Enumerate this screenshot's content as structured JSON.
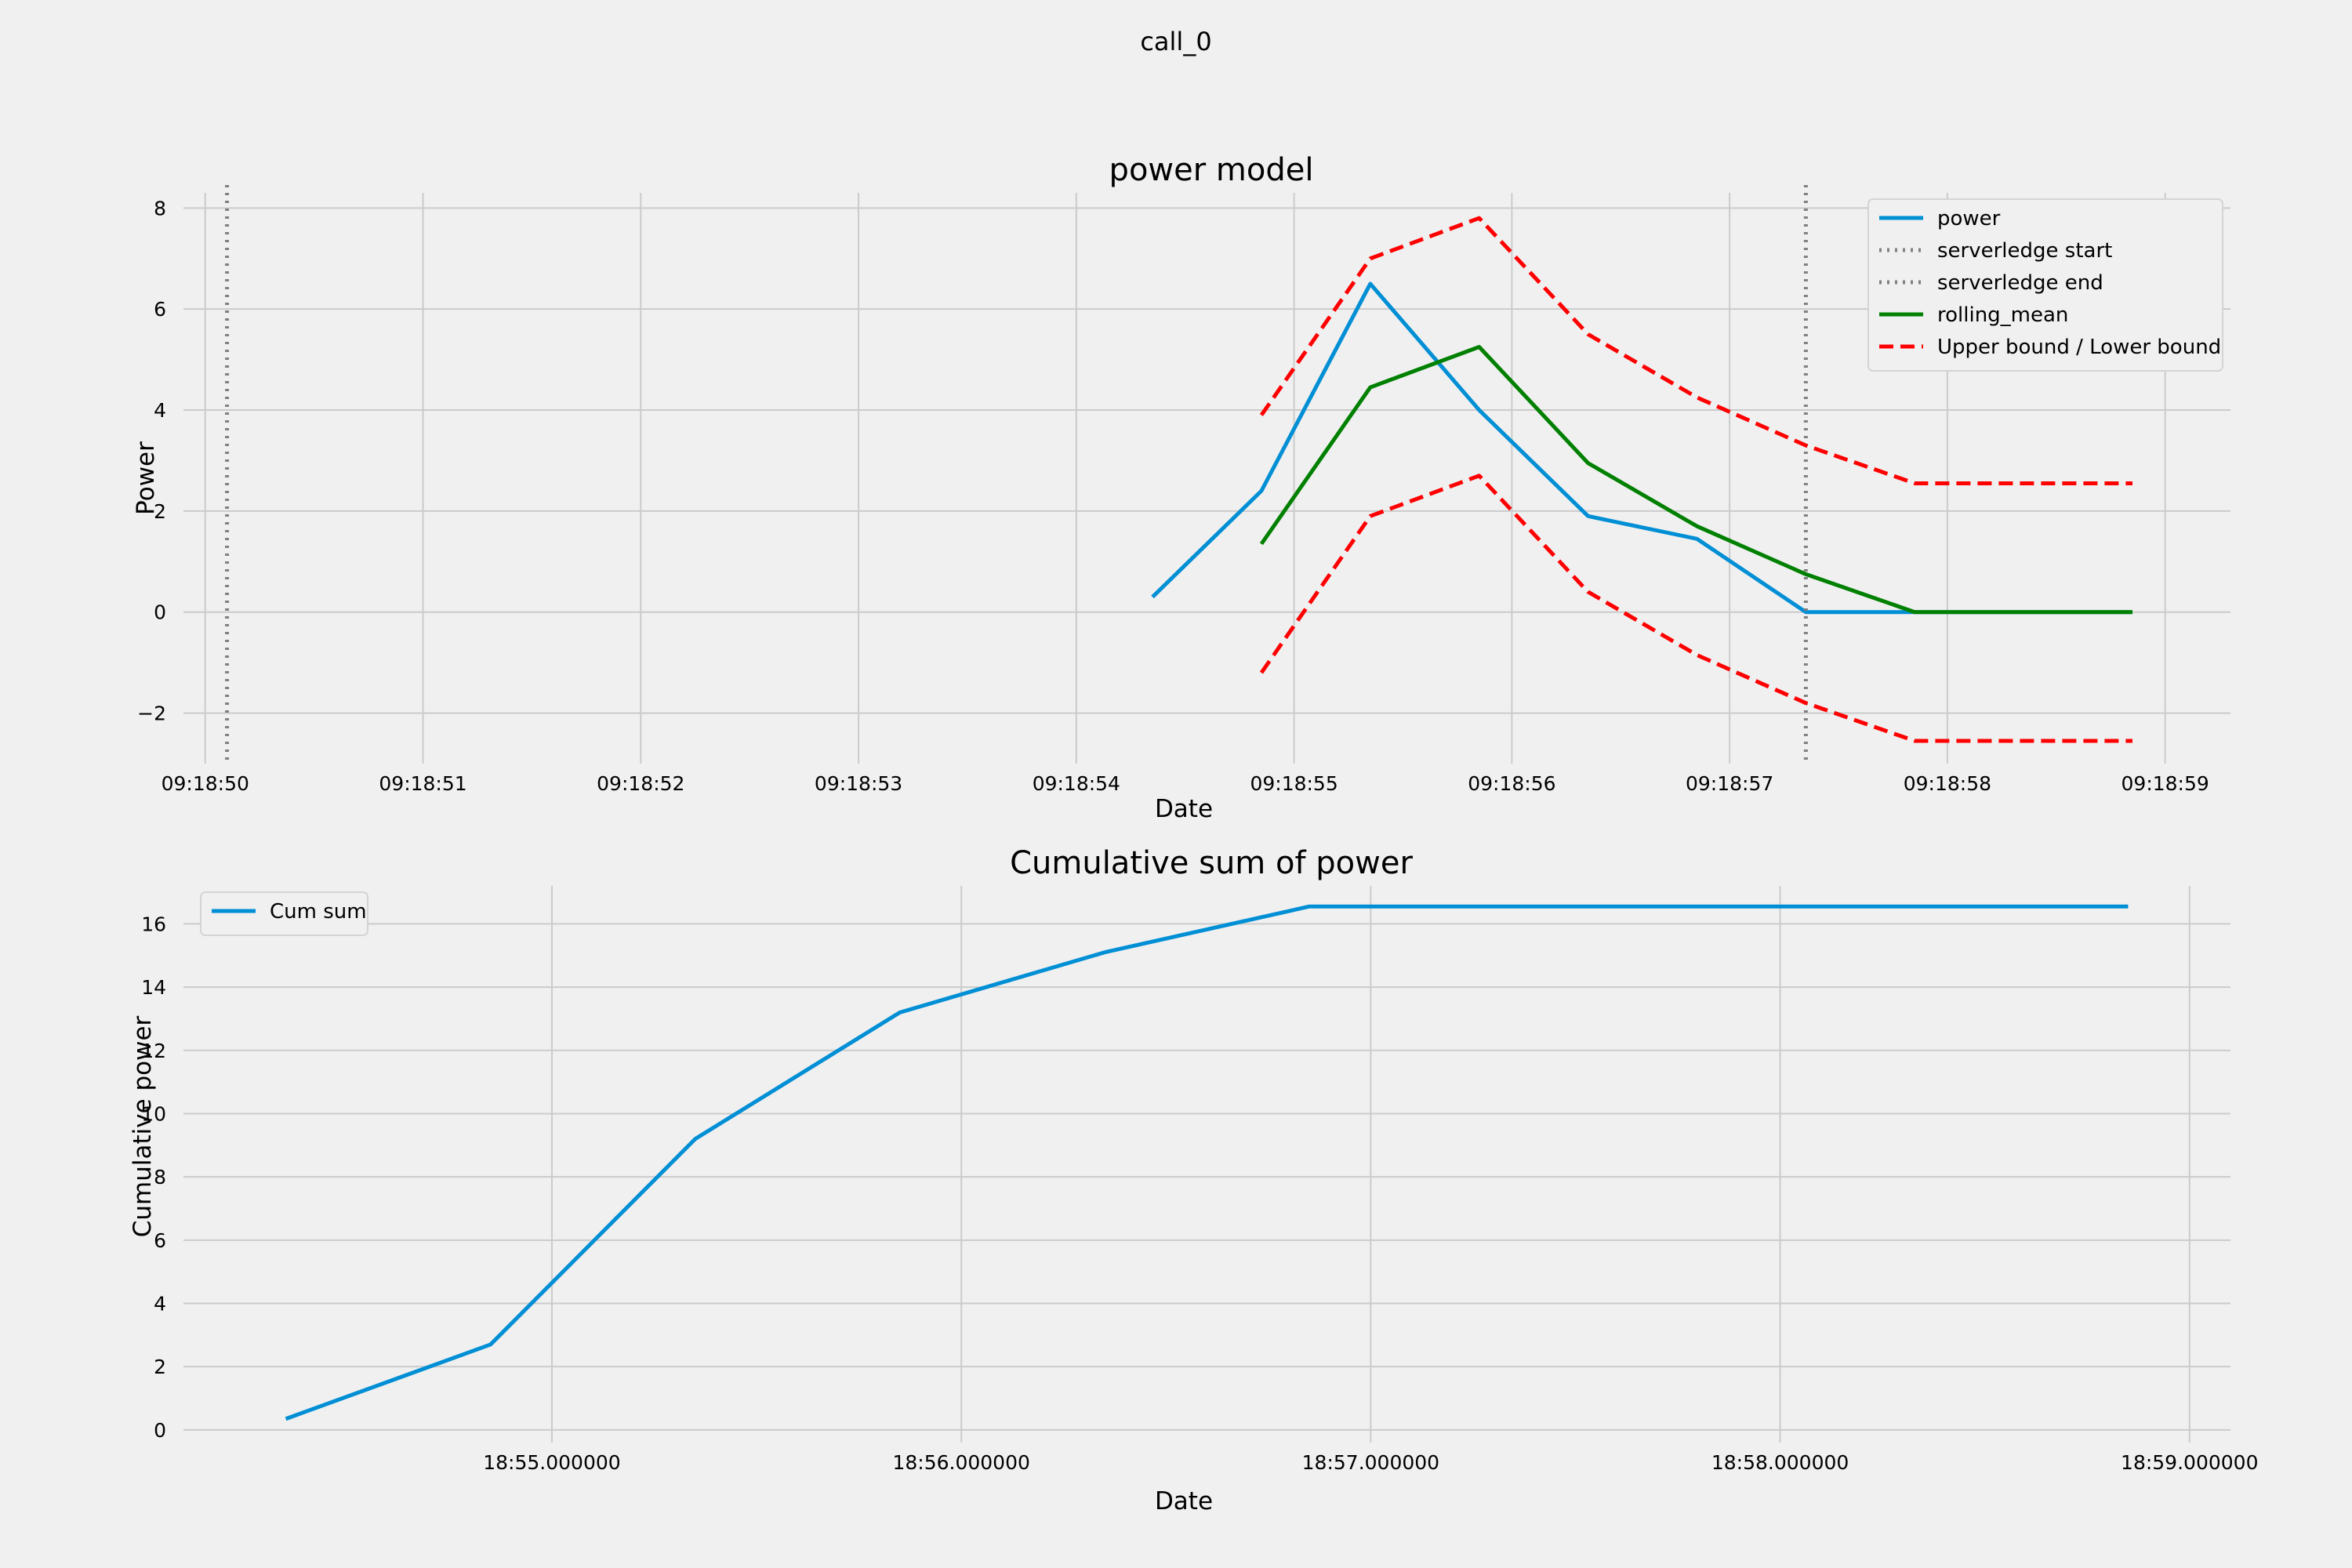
{
  "figure_title": "call_0",
  "chart_data": [
    {
      "type": "line",
      "title": "power model",
      "xlabel": "Date",
      "ylabel": "Power",
      "x_unit": "seconds after 09:18:00",
      "xlim": [
        49.9,
        59.3
      ],
      "ylim": [
        -3.0,
        8.3
      ],
      "x_ticks": [
        50,
        51,
        52,
        53,
        54,
        55,
        56,
        57,
        58,
        59
      ],
      "x_tick_labels": [
        "09:18:50",
        "09:18:51",
        "09:18:52",
        "09:18:53",
        "09:18:54",
        "09:18:55",
        "09:18:56",
        "09:18:57",
        "09:18:58",
        "09:18:59"
      ],
      "y_ticks": [
        -2,
        0,
        2,
        4,
        6,
        8
      ],
      "y_tick_labels": [
        "−2",
        "0",
        "2",
        "4",
        "6",
        "8"
      ],
      "grid": true,
      "legend_position": "top-right",
      "series": [
        {
          "name": "power",
          "color": "#008fd5",
          "style": "solid",
          "x": [
            54.35,
            54.85,
            55.35,
            55.85,
            56.35,
            56.85,
            57.35,
            57.85,
            58.85
          ],
          "y": [
            0.3,
            2.4,
            6.5,
            4.0,
            1.9,
            1.45,
            0.0,
            0.0,
            0.0
          ]
        },
        {
          "name": "serverledge start",
          "color": "#808080",
          "style": "dotted",
          "vline_x": 50.1
        },
        {
          "name": "serverledge end",
          "color": "#808080",
          "style": "dotted",
          "vline_x": 57.35
        },
        {
          "name": "rolling_mean",
          "color": "#008000",
          "style": "solid",
          "x": [
            54.85,
            55.35,
            55.85,
            56.35,
            56.85,
            57.35,
            57.85,
            58.85
          ],
          "y": [
            1.35,
            4.45,
            5.25,
            2.95,
            1.7,
            0.75,
            0.0,
            0.0
          ]
        },
        {
          "name": "Upper bound / Lower bound",
          "color": "#ff0000",
          "style": "dashed",
          "x": [
            54.85,
            55.35,
            55.85,
            56.35,
            56.85,
            57.35,
            57.85,
            58.85
          ],
          "y": [
            3.9,
            7.0,
            7.8,
            5.5,
            4.25,
            3.3,
            2.55,
            2.55
          ],
          "y2": [
            -1.2,
            1.9,
            2.7,
            0.4,
            -0.85,
            -1.8,
            -2.55,
            -2.55
          ]
        }
      ]
    },
    {
      "type": "line",
      "title": "Cumulative sum of power",
      "xlabel": "Date",
      "ylabel": "Cumulative power",
      "x_unit": "seconds after 18:54",
      "xlim": [
        0.1,
        5.1
      ],
      "ylim": [
        -0.4,
        17.2
      ],
      "x_ticks": [
        1,
        2,
        3,
        4,
        5
      ],
      "x_tick_labels": [
        "18:55.000000",
        "18:56.000000",
        "18:57.000000",
        "18:58.000000",
        "18:59.000000"
      ],
      "y_ticks": [
        0,
        2,
        4,
        6,
        8,
        10,
        12,
        14,
        16
      ],
      "y_tick_labels": [
        "0",
        "2",
        "4",
        "6",
        "8",
        "10",
        "12",
        "14",
        "16"
      ],
      "grid": true,
      "legend_position": "top-left",
      "series": [
        {
          "name": "Cum sum",
          "color": "#008fd5",
          "style": "solid",
          "x": [
            0.35,
            0.85,
            1.35,
            1.85,
            2.35,
            2.85,
            3.35,
            3.85,
            4.85
          ],
          "y": [
            0.35,
            2.7,
            9.2,
            13.2,
            15.1,
            16.55,
            16.55,
            16.55,
            16.55
          ]
        }
      ]
    }
  ]
}
